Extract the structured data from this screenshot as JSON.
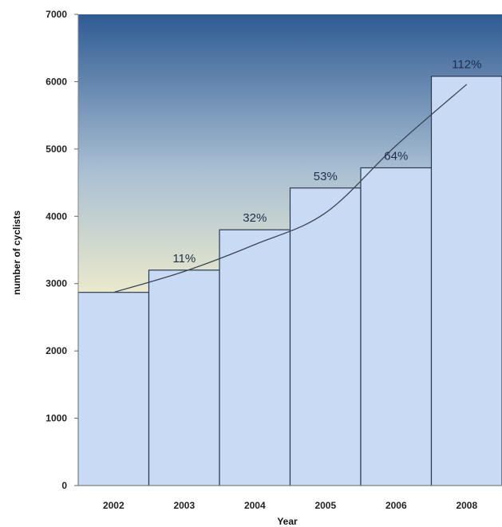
{
  "chart_data": {
    "type": "bar",
    "categories": [
      "2002",
      "2003",
      "2004",
      "2005",
      "2006",
      "2008"
    ],
    "values": [
      2870,
      3200,
      3800,
      4420,
      4720,
      6080
    ],
    "data_labels": [
      "",
      "11%",
      "32%",
      "53%",
      "64%",
      "112%"
    ],
    "trend": [
      2870,
      3180,
      3580,
      4050,
      5050,
      5960
    ],
    "xlabel": "Year",
    "ylabel": "number of cyclists",
    "ylim": [
      0,
      7000
    ],
    "yticks": [
      0,
      1000,
      2000,
      3000,
      4000,
      5000,
      6000,
      7000
    ],
    "grid": false,
    "legend": "none",
    "colors": {
      "bar_fill": "#c9dbf4",
      "bar_stroke": "#2b3a4e",
      "bg_top": "#2f5b93",
      "bg_mid": "#a9bfd3",
      "bg_bottom": "#eeeccb",
      "trend_line": "#3a4556"
    }
  }
}
